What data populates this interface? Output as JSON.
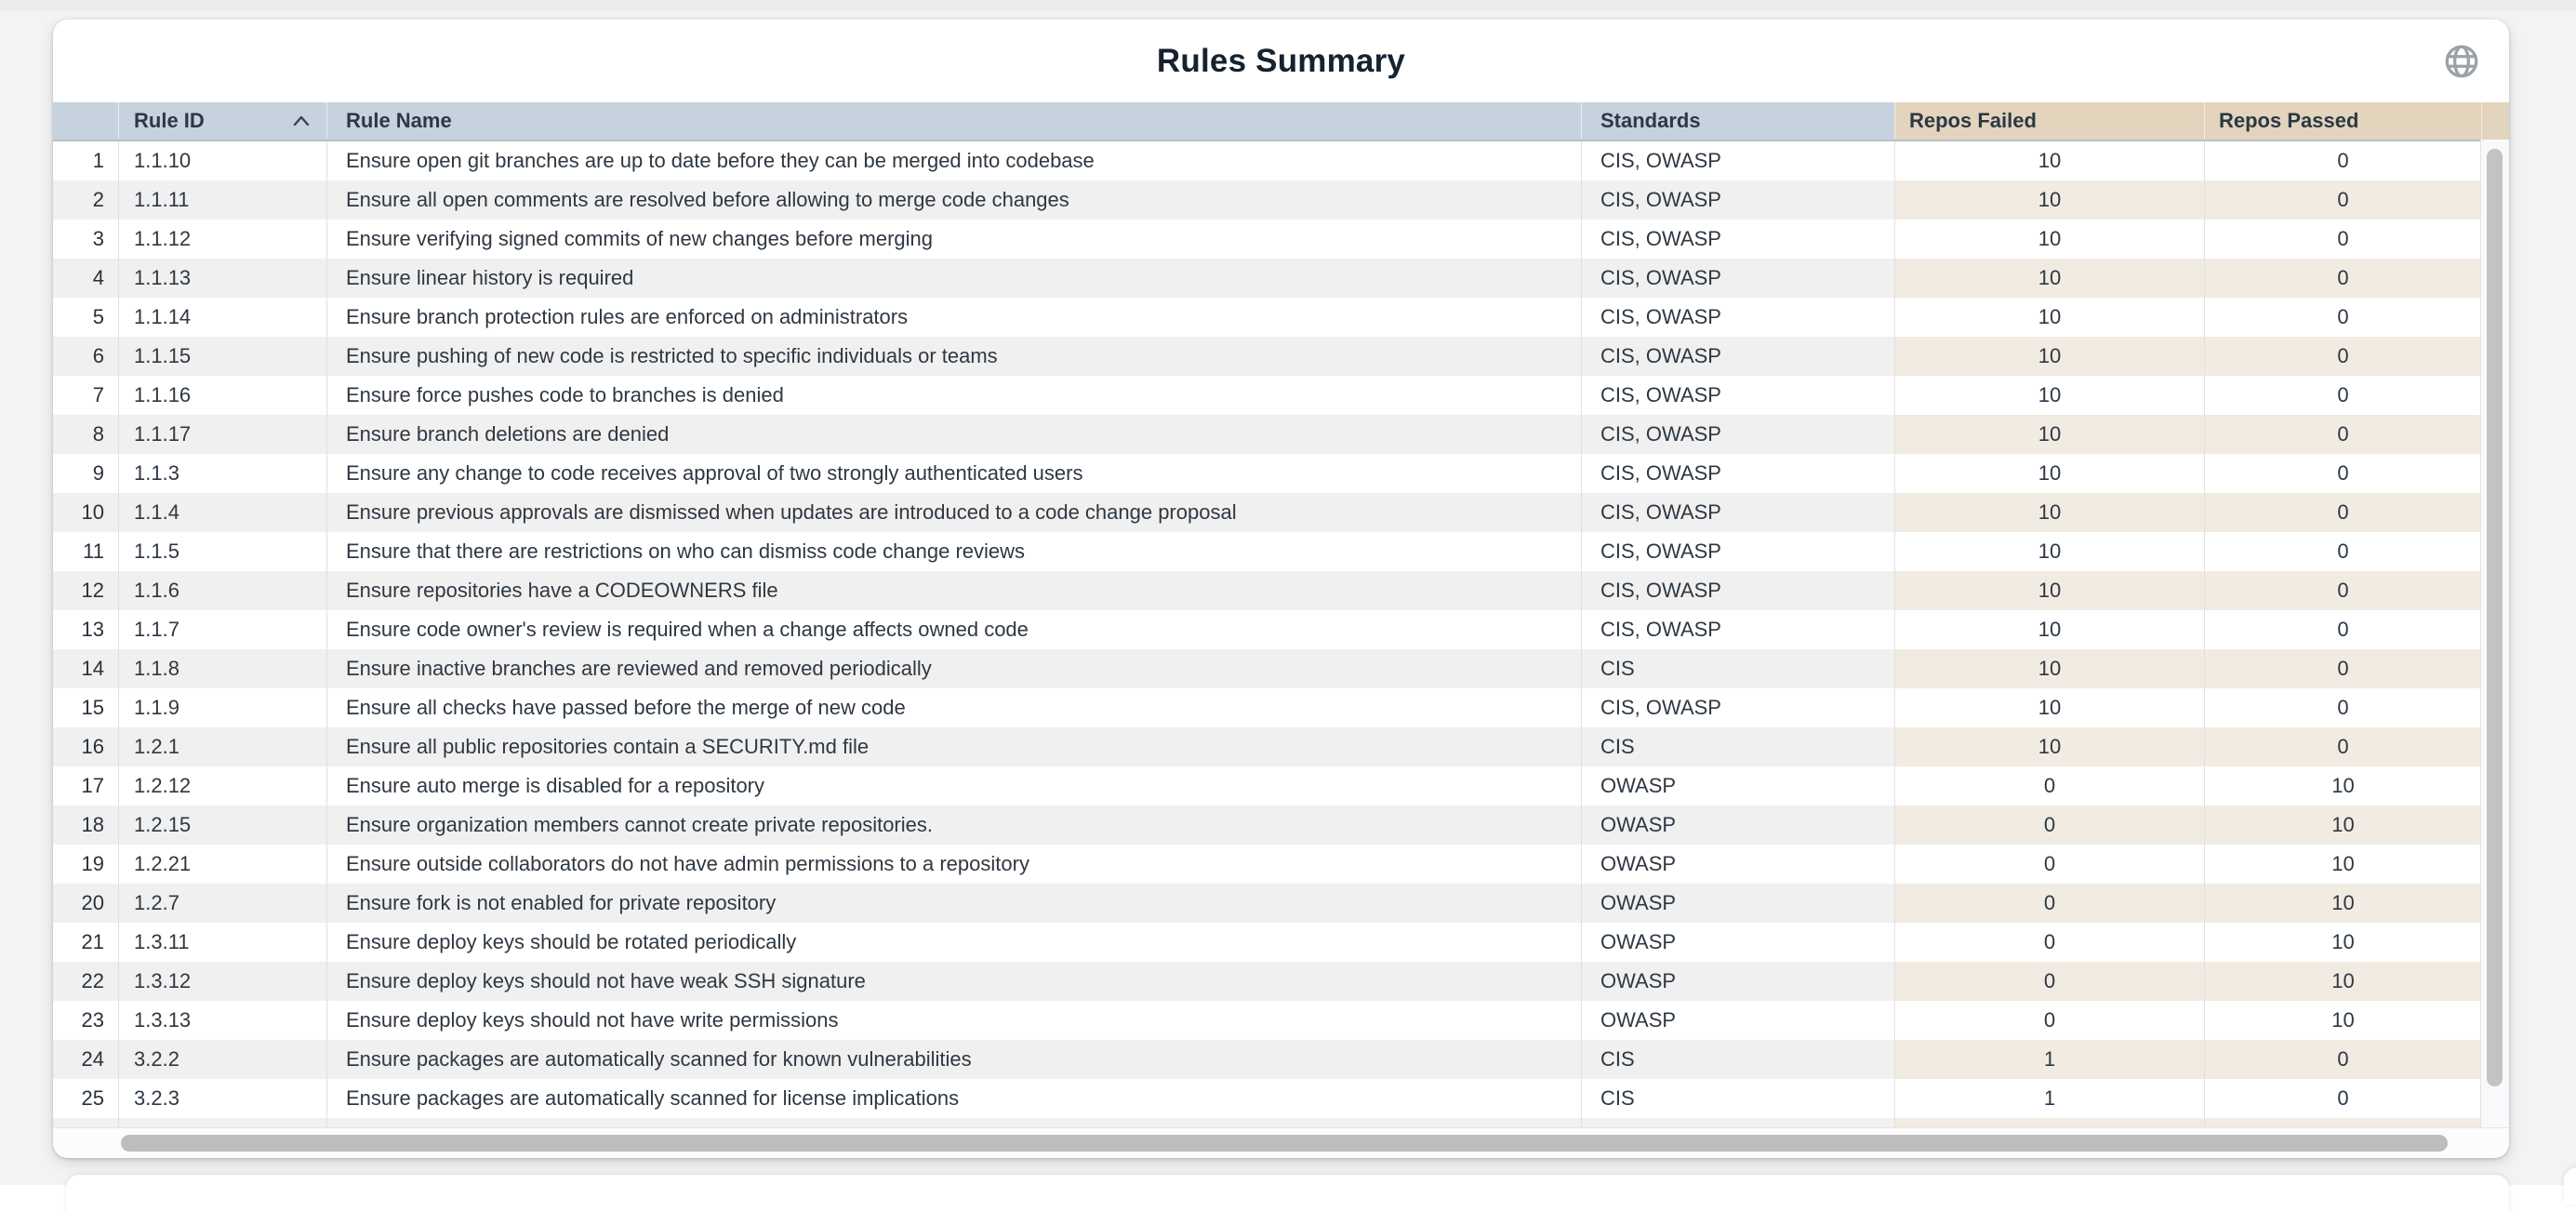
{
  "card": {
    "title": "Rules Summary"
  },
  "header_icons": {
    "globe": "globe-icon"
  },
  "colors": {
    "header_blue": "#c6d3df",
    "header_tan": "#e3d4be",
    "row_alt_gray": "#f0f0f0",
    "row_alt_tan": "#f2ebe2",
    "text_dark": "#2e3842",
    "page_bg": "#f1f3f5"
  },
  "table": {
    "sort": {
      "column": "Rule ID",
      "direction": "ascending"
    },
    "columns": [
      {
        "key": "index",
        "label": ""
      },
      {
        "key": "rule_id",
        "label": "Rule ID"
      },
      {
        "key": "rule_name",
        "label": "Rule Name"
      },
      {
        "key": "standards",
        "label": "Standards"
      },
      {
        "key": "repos_failed",
        "label": "Repos Failed"
      },
      {
        "key": "repos_passed",
        "label": "Repos Passed"
      }
    ],
    "rows": [
      {
        "index": 1,
        "rule_id": "1.1.10",
        "rule_name": "Ensure open git branches are up to date before they can be merged into codebase",
        "standards": "CIS, OWASP",
        "repos_failed": 10,
        "repos_passed": 0
      },
      {
        "index": 2,
        "rule_id": "1.1.11",
        "rule_name": "Ensure all open comments are resolved before allowing to merge code changes",
        "standards": "CIS, OWASP",
        "repos_failed": 10,
        "repos_passed": 0
      },
      {
        "index": 3,
        "rule_id": "1.1.12",
        "rule_name": "Ensure verifying signed commits of new changes before merging",
        "standards": "CIS, OWASP",
        "repos_failed": 10,
        "repos_passed": 0
      },
      {
        "index": 4,
        "rule_id": "1.1.13",
        "rule_name": "Ensure linear history is required",
        "standards": "CIS, OWASP",
        "repos_failed": 10,
        "repos_passed": 0
      },
      {
        "index": 5,
        "rule_id": "1.1.14",
        "rule_name": "Ensure branch protection rules are enforced on administrators",
        "standards": "CIS, OWASP",
        "repos_failed": 10,
        "repos_passed": 0
      },
      {
        "index": 6,
        "rule_id": "1.1.15",
        "rule_name": "Ensure pushing of new code is restricted to specific individuals or teams",
        "standards": "CIS, OWASP",
        "repos_failed": 10,
        "repos_passed": 0
      },
      {
        "index": 7,
        "rule_id": "1.1.16",
        "rule_name": "Ensure force pushes code to branches is denied",
        "standards": "CIS, OWASP",
        "repos_failed": 10,
        "repos_passed": 0
      },
      {
        "index": 8,
        "rule_id": "1.1.17",
        "rule_name": "Ensure branch deletions are denied",
        "standards": "CIS, OWASP",
        "repos_failed": 10,
        "repos_passed": 0
      },
      {
        "index": 9,
        "rule_id": "1.1.3",
        "rule_name": "Ensure any change to code receives approval of two strongly authenticated users",
        "standards": "CIS, OWASP",
        "repos_failed": 10,
        "repos_passed": 0
      },
      {
        "index": 10,
        "rule_id": "1.1.4",
        "rule_name": "Ensure previous approvals are dismissed when updates are introduced to a code change proposal",
        "standards": "CIS, OWASP",
        "repos_failed": 10,
        "repos_passed": 0
      },
      {
        "index": 11,
        "rule_id": "1.1.5",
        "rule_name": "Ensure that there are restrictions on who can dismiss code change reviews",
        "standards": "CIS, OWASP",
        "repos_failed": 10,
        "repos_passed": 0
      },
      {
        "index": 12,
        "rule_id": "1.1.6",
        "rule_name": "Ensure repositories have a CODEOWNERS file",
        "standards": "CIS, OWASP",
        "repos_failed": 10,
        "repos_passed": 0
      },
      {
        "index": 13,
        "rule_id": "1.1.7",
        "rule_name": "Ensure code owner's review is required when a change affects owned code",
        "standards": "CIS, OWASP",
        "repos_failed": 10,
        "repos_passed": 0
      },
      {
        "index": 14,
        "rule_id": "1.1.8",
        "rule_name": "Ensure inactive branches are reviewed and removed periodically",
        "standards": "CIS",
        "repos_failed": 10,
        "repos_passed": 0
      },
      {
        "index": 15,
        "rule_id": "1.1.9",
        "rule_name": "Ensure all checks have passed before the merge of new code",
        "standards": "CIS, OWASP",
        "repos_failed": 10,
        "repos_passed": 0
      },
      {
        "index": 16,
        "rule_id": "1.2.1",
        "rule_name": "Ensure all public repositories contain a SECURITY.md file",
        "standards": "CIS",
        "repos_failed": 10,
        "repos_passed": 0
      },
      {
        "index": 17,
        "rule_id": "1.2.12",
        "rule_name": "Ensure auto merge is disabled for a repository",
        "standards": "OWASP",
        "repos_failed": 0,
        "repos_passed": 10
      },
      {
        "index": 18,
        "rule_id": "1.2.15",
        "rule_name": "Ensure organization members cannot create private repositories.",
        "standards": "OWASP",
        "repos_failed": 0,
        "repos_passed": 10
      },
      {
        "index": 19,
        "rule_id": "1.2.21",
        "rule_name": "Ensure outside collaborators do not have admin permissions to a repository",
        "standards": "OWASP",
        "repos_failed": 0,
        "repos_passed": 10
      },
      {
        "index": 20,
        "rule_id": "1.2.7",
        "rule_name": "Ensure fork is not enabled for private repository",
        "standards": "OWASP",
        "repos_failed": 0,
        "repos_passed": 10
      },
      {
        "index": 21,
        "rule_id": "1.3.11",
        "rule_name": "Ensure deploy keys should be rotated periodically",
        "standards": "OWASP",
        "repos_failed": 0,
        "repos_passed": 10
      },
      {
        "index": 22,
        "rule_id": "1.3.12",
        "rule_name": "Ensure deploy keys should not have weak SSH signature",
        "standards": "OWASP",
        "repos_failed": 0,
        "repos_passed": 10
      },
      {
        "index": 23,
        "rule_id": "1.3.13",
        "rule_name": "Ensure deploy keys should not have write permissions",
        "standards": "OWASP",
        "repos_failed": 0,
        "repos_passed": 10
      },
      {
        "index": 24,
        "rule_id": "3.2.2",
        "rule_name": "Ensure packages are automatically scanned for known vulnerabilities",
        "standards": "CIS",
        "repos_failed": 1,
        "repos_passed": 0
      },
      {
        "index": 25,
        "rule_id": "3.2.3",
        "rule_name": "Ensure packages are automatically scanned for license implications",
        "standards": "CIS",
        "repos_failed": 1,
        "repos_passed": 0
      }
    ],
    "partial_row_visible": true
  }
}
